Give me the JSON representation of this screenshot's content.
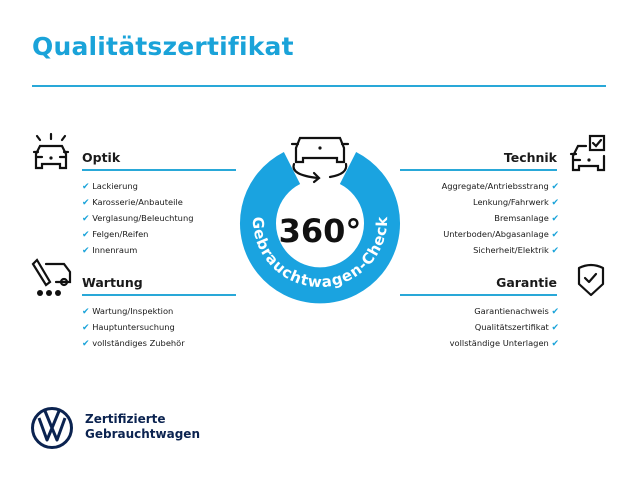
{
  "title": "Qualitätszertifikat",
  "accent_color": "#1aa3d9",
  "badge": {
    "main": "360°",
    "arc_text": "Gebrauchtwagen-Check",
    "icon": "car-rotate-icon"
  },
  "sections": {
    "optik": {
      "heading": "Optik",
      "icon": "car-lights-icon",
      "items": [
        "Lackierung",
        "Karosserie/Anbauteile",
        "Verglasung/Beleuchtung",
        "Felgen/Reifen",
        "Innenraum"
      ]
    },
    "wartung": {
      "heading": "Wartung",
      "icon": "service-tools-icon",
      "items": [
        "Wartung/Inspektion",
        "Hauptuntersuchung",
        "vollständiges Zubehör"
      ]
    },
    "technik": {
      "heading": "Technik",
      "icon": "car-checkbox-icon",
      "items": [
        "Aggregate/Antriebsstrang",
        "Lenkung/Fahrwerk",
        "Bremsanlage",
        "Unterboden/Abgasanlage",
        "Sicherheit/Elektrik"
      ]
    },
    "garantie": {
      "heading": "Garantie",
      "icon": "shield-check-icon",
      "items": [
        "Garantienachweis",
        "Qualitätszertifikat",
        "vollständige Unterlagen"
      ]
    }
  },
  "check_mark": "✔",
  "brand": {
    "line1": "Zertifizierte",
    "line2": "Gebrauchtwagen",
    "logo": "vw-logo"
  }
}
